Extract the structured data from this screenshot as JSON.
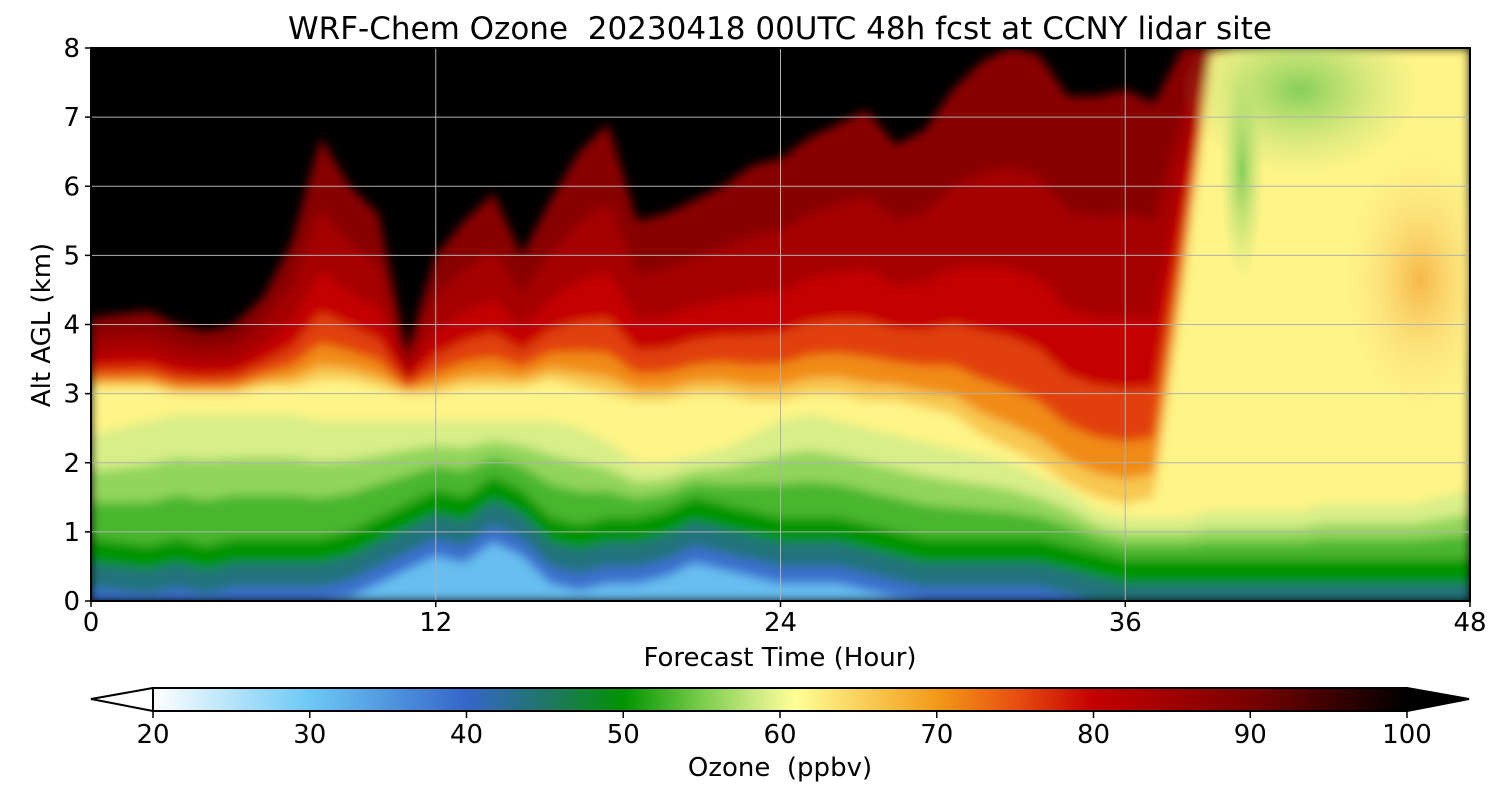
{
  "chart_data": {
    "type": "heatmap",
    "title": "WRF-Chem Ozone  20230418 00UTC 48h fcst at CCNY lidar site",
    "xlabel": "Forecast Time (Hour)",
    "ylabel": "Alt AGL (km)",
    "xlim": [
      0,
      48
    ],
    "ylim": [
      0,
      8
    ],
    "x_ticks": [
      0,
      12,
      24,
      36,
      48
    ],
    "y_ticks": [
      0,
      1,
      2,
      3,
      4,
      5,
      6,
      7,
      8
    ],
    "grid": true,
    "colorbar": {
      "label": "Ozone  (ppbv)",
      "range": [
        20,
        100
      ],
      "ticks": [
        20,
        30,
        40,
        50,
        60,
        70,
        80,
        90,
        100
      ],
      "extend": "both",
      "orientation": "horizontal",
      "position": "bottom"
    },
    "colormap": [
      {
        "value": 20,
        "color": "#ffffff"
      },
      {
        "value": 30,
        "color": "#6cc8f5"
      },
      {
        "value": 40,
        "color": "#3566c9"
      },
      {
        "value": 46,
        "color": "#1b7a55"
      },
      {
        "value": 50,
        "color": "#009400"
      },
      {
        "value": 55,
        "color": "#7acc4c"
      },
      {
        "value": 59,
        "color": "#d8ee88"
      },
      {
        "value": 61,
        "color": "#ffff95"
      },
      {
        "value": 70,
        "color": "#f39a18"
      },
      {
        "value": 75,
        "color": "#e85010"
      },
      {
        "value": 80,
        "color": "#c40000"
      },
      {
        "value": 90,
        "color": "#7a0000"
      },
      {
        "value": 100,
        "color": "#000000"
      }
    ],
    "layer_bounds_km": {
      "hours": [
        0,
        2,
        3,
        4,
        5,
        6,
        7,
        8,
        9,
        10,
        11,
        12,
        13,
        14,
        15,
        16,
        17,
        18,
        19,
        20,
        21,
        22,
        23,
        24,
        25,
        26,
        27,
        28,
        29,
        30,
        31,
        32,
        33,
        34,
        35,
        36,
        37,
        38,
        39,
        40,
        41,
        42,
        43,
        44,
        45,
        46,
        47,
        48
      ],
      "top_of_ozone_above_90ppb": [
        4.1,
        4.2,
        4.0,
        3.9,
        4.0,
        4.4,
        5.2,
        6.7,
        6.0,
        5.6,
        3.6,
        5.0,
        5.5,
        5.9,
        5.0,
        5.8,
        6.5,
        6.9,
        5.5,
        5.6,
        5.8,
        6.0,
        6.3,
        6.4,
        6.7,
        6.9,
        7.1,
        6.6,
        6.8,
        7.4,
        7.8,
        8.0,
        7.9,
        7.3,
        7.3,
        7.4,
        7.2,
        8.0,
        8.0,
        8.0,
        8.0,
        8.0,
        8.0,
        8.0,
        8.0,
        8.0,
        8.0,
        8.0
      ],
      "top_of_high_ozone_layer": [
        3.1,
        3.1,
        3.0,
        3.0,
        3.0,
        3.1,
        3.1,
        3.2,
        3.2,
        3.1,
        3.0,
        3.0,
        3.1,
        3.1,
        3.1,
        3.2,
        3.1,
        3.0,
        2.9,
        2.9,
        3.0,
        3.0,
        2.9,
        2.9,
        3.0,
        3.0,
        2.9,
        2.9,
        2.8,
        2.7,
        2.4,
        2.2,
        2.0,
        1.7,
        1.5,
        1.4,
        1.5,
        4.5,
        7.9,
        8.0,
        8.0,
        8.0,
        8.0,
        8.0,
        8.0,
        8.0,
        8.0,
        8.0
      ],
      "bottom_of_high_ozone_layer": [
        2.4,
        2.6,
        2.7,
        2.7,
        2.7,
        2.7,
        2.7,
        2.6,
        2.6,
        2.6,
        2.6,
        2.6,
        2.6,
        2.6,
        2.6,
        2.6,
        2.5,
        2.3,
        2.0,
        2.0,
        2.1,
        2.2,
        2.4,
        2.6,
        2.7,
        2.6,
        2.5,
        2.4,
        2.3,
        2.2,
        2.1,
        2.0,
        1.8,
        1.6,
        1.3,
        1.2,
        1.2,
        1.2,
        1.3,
        1.3,
        1.3,
        1.3,
        1.4,
        1.4,
        1.4,
        1.4,
        1.5,
        1.6
      ],
      "top_of_low_ozone_layer": [
        0.3,
        0.2,
        0.3,
        0.2,
        0.3,
        0.3,
        0.3,
        0.3,
        0.4,
        0.6,
        0.8,
        1.0,
        0.9,
        1.2,
        1.0,
        0.6,
        0.5,
        0.6,
        0.6,
        0.7,
        0.9,
        0.8,
        0.7,
        0.6,
        0.6,
        0.6,
        0.5,
        0.4,
        0.3,
        0.3,
        0.3,
        0.3,
        0.3,
        0.2,
        0.1,
        0.0,
        0.0,
        0.0,
        0.0,
        0.0,
        0.0,
        0.0,
        0.0,
        0.0,
        0.0,
        0.0,
        0.0,
        0.0
      ]
    }
  }
}
